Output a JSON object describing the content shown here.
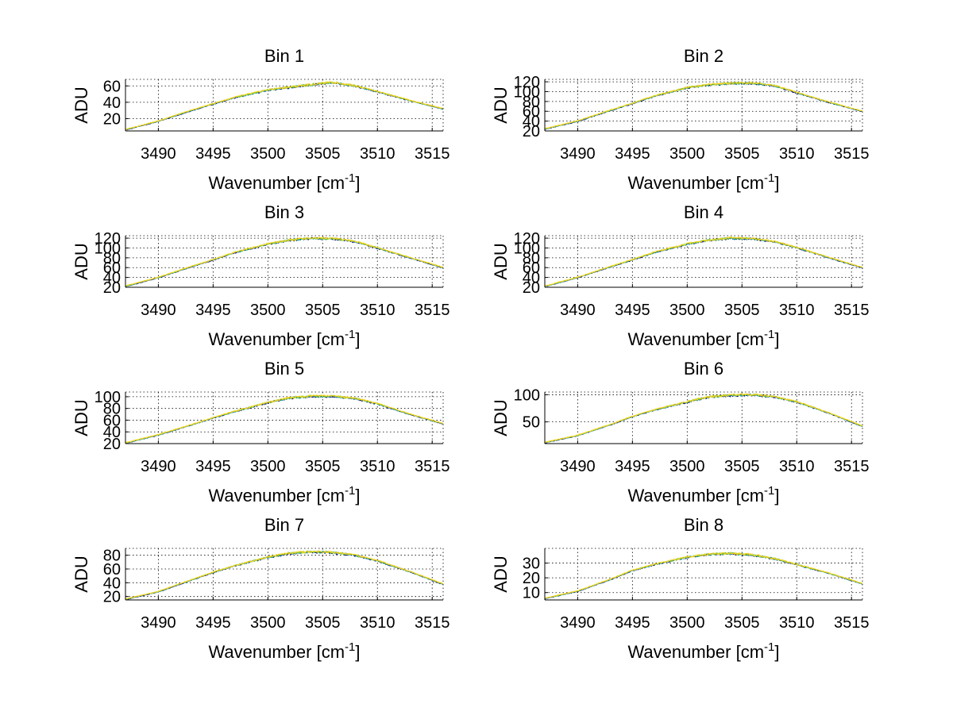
{
  "colors": {
    "series": [
      "#000080",
      "#0f9fa0",
      "#7fcf30",
      "#ffd21a"
    ],
    "grid": "#000000",
    "background": "#ffffff"
  },
  "chart_data": [
    {
      "type": "line",
      "title": "Bin 1",
      "xlabel": "Wavenumber [cm",
      "xlabel_sup": "-1",
      "xlabel_end": "]",
      "ylabel": "ADU",
      "xlim": [
        3487,
        3516
      ],
      "ylim": [
        5,
        68
      ],
      "xticks": [
        3490,
        3495,
        3500,
        3505,
        3510,
        3515
      ],
      "yticks": [
        20,
        40,
        60
      ],
      "grid": true,
      "x": [
        3487,
        3490,
        3493,
        3495,
        3497,
        3500,
        3503,
        3505,
        3506,
        3508,
        3510,
        3513,
        3516
      ],
      "y": [
        6.5,
        17,
        30,
        38,
        46,
        55,
        60,
        63,
        64,
        60,
        53,
        42,
        32
      ]
    },
    {
      "type": "line",
      "title": "Bin 2",
      "xlabel": "Wavenumber [cm",
      "xlabel_sup": "-1",
      "xlabel_end": "]",
      "ylabel": "ADU",
      "xlim": [
        3487,
        3516
      ],
      "ylim": [
        20,
        125
      ],
      "xticks": [
        3490,
        3495,
        3500,
        3505,
        3510,
        3515
      ],
      "yticks": [
        20,
        40,
        60,
        80,
        100,
        120
      ],
      "grid": true,
      "x": [
        3487,
        3490,
        3493,
        3495,
        3497,
        3500,
        3502,
        3504,
        3506,
        3508,
        3510,
        3513,
        3516
      ],
      "y": [
        24,
        40,
        62,
        76,
        91,
        108,
        114,
        117,
        117,
        112,
        98,
        78,
        60
      ]
    },
    {
      "type": "line",
      "title": "Bin 3",
      "xlabel": "Wavenumber [cm",
      "xlabel_sup": "-1",
      "xlabel_end": "]",
      "ylabel": "ADU",
      "xlim": [
        3487,
        3516
      ],
      "ylim": [
        20,
        125
      ],
      "xticks": [
        3490,
        3495,
        3500,
        3505,
        3510,
        3515
      ],
      "yticks": [
        20,
        40,
        60,
        80,
        100,
        120
      ],
      "grid": true,
      "x": [
        3487,
        3490,
        3493,
        3495,
        3497,
        3500,
        3502,
        3504,
        3506,
        3508,
        3510,
        3513,
        3516
      ],
      "y": [
        22,
        40,
        62,
        76,
        91,
        108,
        116,
        120,
        119,
        113,
        100,
        80,
        60
      ]
    },
    {
      "type": "line",
      "title": "Bin 4",
      "xlabel": "Wavenumber [cm",
      "xlabel_sup": "-1",
      "xlabel_end": "]",
      "ylabel": "ADU",
      "xlim": [
        3487,
        3516
      ],
      "ylim": [
        20,
        125
      ],
      "xticks": [
        3490,
        3495,
        3500,
        3505,
        3510,
        3515
      ],
      "yticks": [
        20,
        40,
        60,
        80,
        100,
        120
      ],
      "grid": true,
      "x": [
        3487,
        3490,
        3493,
        3495,
        3497,
        3500,
        3502,
        3504,
        3506,
        3508,
        3510,
        3513,
        3516
      ],
      "y": [
        22,
        40,
        62,
        76,
        91,
        108,
        116,
        120,
        119,
        113,
        101,
        80,
        60
      ]
    },
    {
      "type": "line",
      "title": "Bin 5",
      "xlabel": "Wavenumber [cm",
      "xlabel_sup": "-1",
      "xlabel_end": "]",
      "ylabel": "ADU",
      "xlim": [
        3487,
        3516
      ],
      "ylim": [
        20,
        108
      ],
      "xticks": [
        3490,
        3495,
        3500,
        3505,
        3510,
        3515
      ],
      "yticks": [
        20,
        40,
        60,
        80,
        100
      ],
      "grid": true,
      "x": [
        3487,
        3490,
        3493,
        3495,
        3497,
        3500,
        3502,
        3504,
        3506,
        3508,
        3510,
        3513,
        3516
      ],
      "y": [
        21,
        35,
        52,
        64,
        75,
        90,
        98,
        101,
        101,
        97,
        88,
        70,
        54
      ]
    },
    {
      "type": "line",
      "title": "Bin 6",
      "xlabel": "Wavenumber [cm",
      "xlabel_sup": "-1",
      "xlabel_end": "]",
      "ylabel": "ADU",
      "xlim": [
        3487,
        3516
      ],
      "ylim": [
        10,
        105
      ],
      "xticks": [
        3490,
        3495,
        3500,
        3505,
        3510,
        3515
      ],
      "yticks": [
        50,
        100
      ],
      "grid": true,
      "x": [
        3487,
        3490,
        3493,
        3495,
        3497,
        3500,
        3502,
        3504,
        3506,
        3508,
        3510,
        3513,
        3516
      ],
      "y": [
        12,
        25,
        45,
        60,
        72,
        87,
        96,
        99,
        100,
        96,
        87,
        66,
        42
      ]
    },
    {
      "type": "line",
      "title": "Bin 7",
      "xlabel": "Wavenumber [cm",
      "xlabel_sup": "-1",
      "xlabel_end": "]",
      "ylabel": "ADU",
      "xlim": [
        3487,
        3516
      ],
      "ylim": [
        15,
        90
      ],
      "xticks": [
        3490,
        3495,
        3500,
        3505,
        3510,
        3515
      ],
      "yticks": [
        20,
        40,
        60,
        80
      ],
      "grid": true,
      "x": [
        3487,
        3490,
        3493,
        3495,
        3497,
        3500,
        3502,
        3504,
        3506,
        3508,
        3510,
        3513,
        3516
      ],
      "y": [
        16,
        27,
        44,
        55,
        65,
        77,
        83,
        85,
        84,
        80,
        72,
        56,
        38
      ]
    },
    {
      "type": "line",
      "title": "Bin 8",
      "xlabel": "Wavenumber [cm",
      "xlabel_sup": "-1",
      "xlabel_end": "]",
      "ylabel": "ADU",
      "xlim": [
        3487,
        3516
      ],
      "ylim": [
        5,
        40
      ],
      "xticks": [
        3490,
        3495,
        3500,
        3505,
        3510,
        3515
      ],
      "yticks": [
        10,
        20,
        30
      ],
      "grid": true,
      "x": [
        3487,
        3490,
        3493,
        3495,
        3497,
        3500,
        3502,
        3504,
        3506,
        3508,
        3510,
        3513,
        3516
      ],
      "y": [
        6,
        11,
        19,
        25,
        29,
        34,
        36,
        36.5,
        35.5,
        33,
        29,
        23,
        16
      ]
    }
  ]
}
